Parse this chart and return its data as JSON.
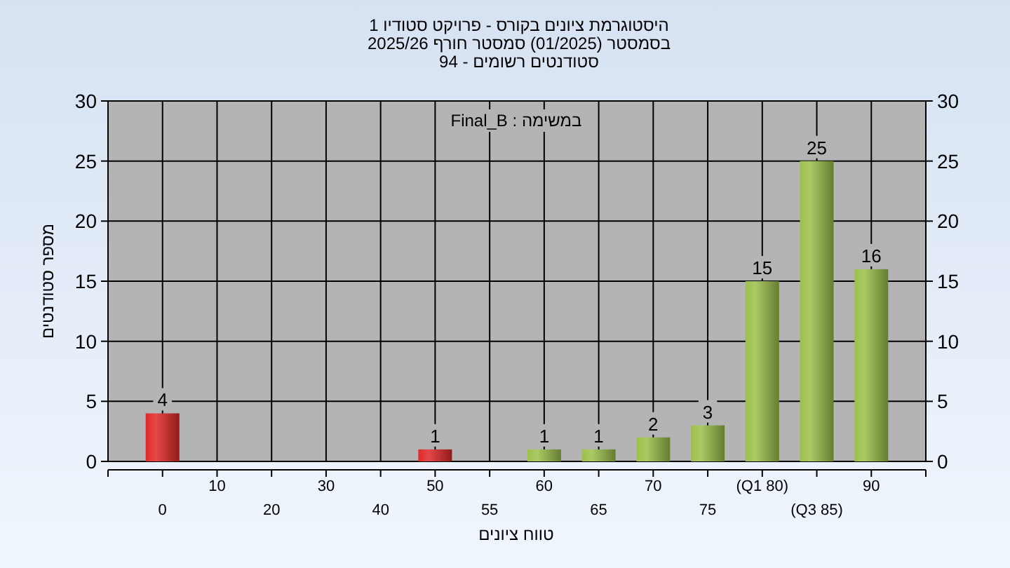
{
  "chart_data": {
    "type": "bar",
    "title": "היסטוגרמת ציונים בקורס - פרויקט סטודיו 1",
    "subtitle": "בסמסטר  (01/2025)  סמסטר חורף 2025/26\nסטודנטים רשומים - 94",
    "xlabel": "טווח ציונים",
    "ylabel": "מספר סטודנטים",
    "annotations": [
      "במשימה : Final_B"
    ],
    "categories": [
      "0",
      "10",
      "20",
      "30",
      "40",
      "50",
      "55",
      "60",
      "65",
      "70",
      "75",
      "(Q1 80)",
      "(Q3 85)",
      "90"
    ],
    "values": [
      4,
      0,
      0,
      0,
      0,
      1,
      0,
      1,
      1,
      2,
      3,
      15,
      25,
      16
    ],
    "colors": [
      "#e02828",
      "#9cc04a",
      "#9cc04a",
      "#9cc04a",
      "#9cc04a",
      "#e02828",
      "#9cc04a",
      "#9cc04a",
      "#9cc04a",
      "#9cc04a",
      "#9cc04a",
      "#9cc04a",
      "#9cc04a",
      "#9cc04a"
    ],
    "value_labels": [
      "4",
      null,
      null,
      null,
      null,
      "1",
      null,
      "1",
      "1",
      "2",
      "3",
      "15",
      "25",
      "16"
    ],
    "ylim": [
      0,
      30
    ],
    "yticks": [
      0,
      5,
      10,
      15,
      20,
      25,
      30
    ],
    "y2lim": [
      0,
      30
    ],
    "y2ticks": [
      0,
      5,
      10,
      15,
      20,
      25,
      30
    ],
    "grid": true
  }
}
